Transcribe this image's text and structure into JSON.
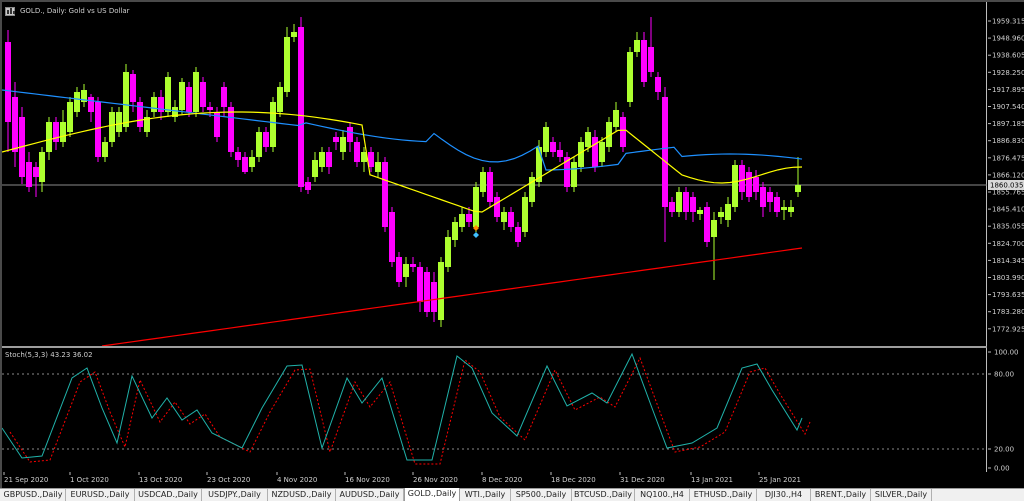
{
  "chart": {
    "title": "GOLD., Daily:  Gold vs US Dollar",
    "current_price_label": "1860.035",
    "colors": {
      "bull": "#adff2f",
      "bear": "#ff00ff",
      "ma_fast": "#ffff00",
      "ma_mid": "#1e90ff",
      "ma_slow": "#ff0000",
      "stoch_main": "#20b2aa",
      "stoch_signal": "#ff0000"
    }
  },
  "price_axis": {
    "labels": [
      "1959.315",
      "1948.960",
      "1938.605",
      "1928.250",
      "1917.895",
      "1907.540",
      "1897.185",
      "1886.830",
      "1876.475",
      "1866.120",
      "1855.765",
      "1845.410",
      "1835.055",
      "1824.700",
      "1814.345",
      "1803.990",
      "1793.635",
      "1783.280",
      "1772.925"
    ]
  },
  "indicator": {
    "label": "Stoch(5,3,3) 43.23 36.02",
    "axis_labels": [
      "100.00",
      "80.00",
      "20.00",
      "0.00"
    ]
  },
  "time_axis": {
    "labels": [
      "21 Sep 2020",
      "1 Oct 2020",
      "13 Oct 2020",
      "23 Oct 2020",
      "4 Nov 2020",
      "16 Nov 2020",
      "26 Nov 2020",
      "8 Dec 2020",
      "18 Dec 2020",
      "31 Dec 2020",
      "13 Jan 2021",
      "25 Jan 2021"
    ]
  },
  "tabs": [
    {
      "label": "GBPUSD.,Daily"
    },
    {
      "label": "EURUSD.,Daily"
    },
    {
      "label": "USDCAD.,Daily"
    },
    {
      "label": "USDJPY.,Daily"
    },
    {
      "label": "NZDUSD.,Daily"
    },
    {
      "label": "AUDUSD.,Daily"
    },
    {
      "label": "GOLD.,Daily",
      "active": true
    },
    {
      "label": "WTI.,Daily"
    },
    {
      "label": "SP500.,Daily"
    },
    {
      "label": "BTCUSD.,Daily"
    },
    {
      "label": "NQ100.,H4"
    },
    {
      "label": "ETHUSD.,Daily"
    },
    {
      "label": "DJI30.,H4"
    },
    {
      "label": "BRENT.,Daily"
    },
    {
      "label": "SILVER.,Daily"
    }
  ]
}
